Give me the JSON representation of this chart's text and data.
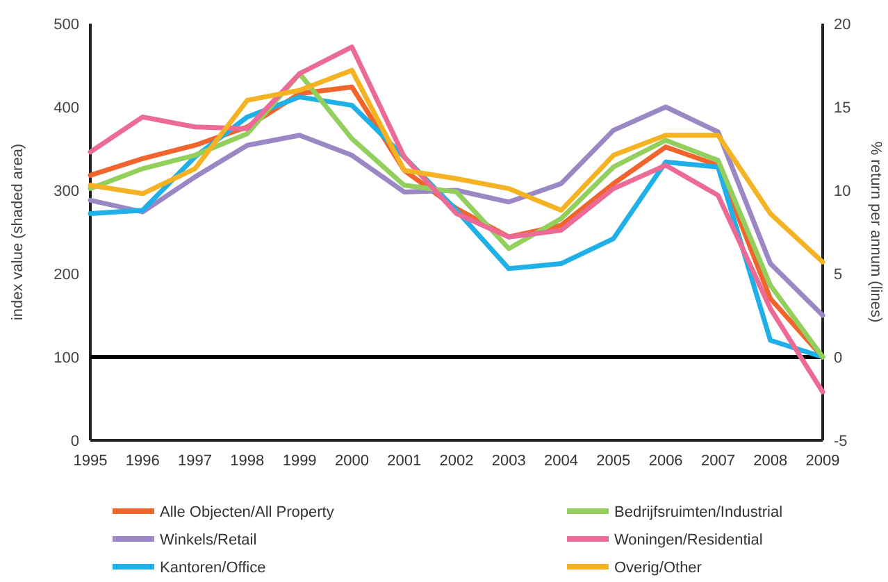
{
  "chart_data": {
    "type": "line",
    "ylabel": "index value (shaded area)",
    "y2label": "% return per annum (lines)",
    "categories": [
      "1995",
      "1996",
      "1997",
      "1998",
      "1999",
      "2000",
      "2001",
      "2002",
      "2003",
      "2004",
      "2005",
      "2006",
      "2007",
      "2008",
      "2009"
    ],
    "ylim": [
      0,
      500
    ],
    "yticks": [
      0,
      100,
      200,
      300,
      400,
      500
    ],
    "y2lim": [
      -5,
      20
    ],
    "y2ticks": [
      -5,
      0,
      5,
      10,
      15,
      20
    ],
    "ref_lines": [
      {
        "axis": "y2",
        "value": 0,
        "color": "#000000"
      }
    ],
    "grid": false,
    "legend": "bottom",
    "line_style": "solid",
    "marker": "none",
    "series": [
      {
        "name": "Alle Objecten/All Property",
        "color": "#f0642d",
        "axis": "y2",
        "values": [
          10.9,
          11.9,
          12.7,
          13.8,
          15.8,
          16.2,
          11.2,
          8.9,
          7.2,
          7.9,
          10.4,
          12.6,
          11.5,
          3.5,
          0
        ]
      },
      {
        "name": "Winkels/Retail",
        "color": "#9b87c4",
        "axis": "y2",
        "values": [
          9.4,
          8.7,
          10.8,
          12.7,
          13.3,
          12.1,
          9.9,
          10,
          9.3,
          10.4,
          13.6,
          15,
          13.5,
          5.6,
          2.5
        ]
      },
      {
        "name": "Kantoren/Office",
        "color": "#1fb0e8",
        "axis": "y2",
        "values": [
          8.6,
          8.8,
          12,
          14.4,
          15.6,
          15.1,
          12,
          8.8,
          5.3,
          5.6,
          7.1,
          11.7,
          11.4,
          1,
          0
        ]
      },
      {
        "name": "Bedrijfsruimten/Industrial",
        "color": "#92cf5c",
        "axis": "y2",
        "values": [
          10.1,
          11.3,
          12.1,
          13.4,
          17,
          13.1,
          10.3,
          9.9,
          6.5,
          8.3,
          11.4,
          13,
          11.8,
          4.3,
          0
        ]
      },
      {
        "name": "Woningen/Residential",
        "color": "#eb6b96",
        "axis": "y2",
        "values": [
          12.3,
          14.4,
          13.8,
          13.7,
          17,
          18.6,
          12,
          8.6,
          7.2,
          7.6,
          10.1,
          11.5,
          9.7,
          2.9,
          -2.1
        ]
      },
      {
        "name": "Overig/Other",
        "color": "#f5b324",
        "axis": "y2",
        "values": [
          10.3,
          9.8,
          11.3,
          15.4,
          16,
          17.2,
          11.2,
          10.7,
          10.1,
          8.8,
          12.1,
          13.3,
          13.3,
          8.6,
          5.7
        ]
      }
    ]
  }
}
